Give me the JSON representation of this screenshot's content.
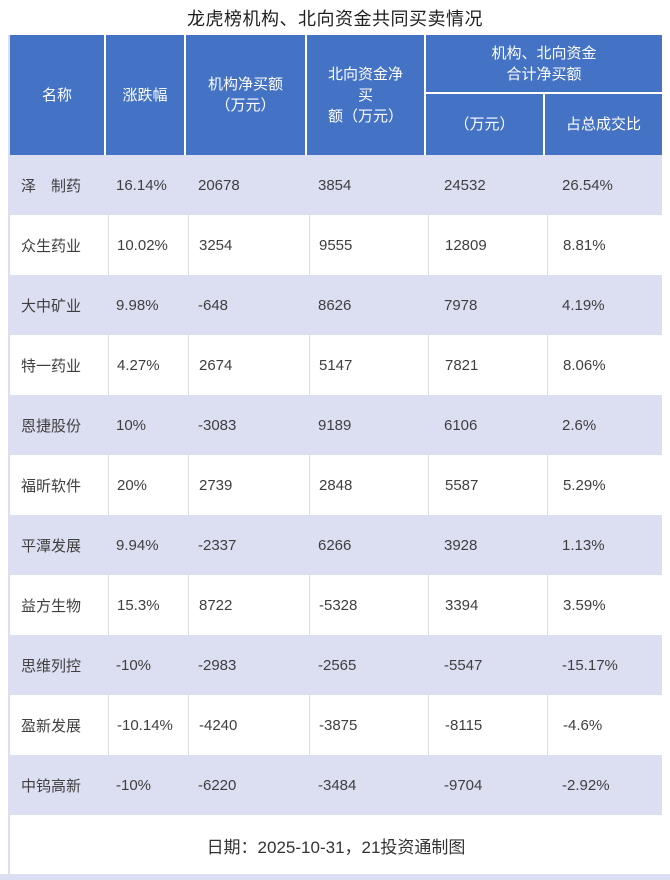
{
  "title": "龙虎榜机构、北向资金共同买卖情况",
  "colors": {
    "header_bg": "#4472C4",
    "header_text": "#FFFFFF",
    "alt_row_bg": "#DCDFF2",
    "body_text": "#3F3F3F"
  },
  "table": {
    "header": {
      "name": "名称",
      "change": "涨跌幅",
      "inst_line1": "机构净买额",
      "inst_line2": "（万元）",
      "north_line1": "北向资金净买",
      "north_line2": "额（万元）",
      "group_line1": "机构、北向资金",
      "group_line2": "合计净买额",
      "sub_amount": "（万元）",
      "sub_ratio": "占总成交比"
    },
    "rows": [
      {
        "name": "泽　制药",
        "change": "16.14%",
        "inst": "20678",
        "north": "3854",
        "total": "24532",
        "ratio": "26.54%"
      },
      {
        "name": "众生药业",
        "change": "10.02%",
        "inst": "3254",
        "north": "9555",
        "total": "12809",
        "ratio": "8.81%"
      },
      {
        "name": "大中矿业",
        "change": "9.98%",
        "inst": "-648",
        "north": "8626",
        "total": "7978",
        "ratio": "4.19%"
      },
      {
        "name": "特一药业",
        "change": "4.27%",
        "inst": "2674",
        "north": "5147",
        "total": "7821",
        "ratio": "8.06%"
      },
      {
        "name": "恩捷股份",
        "change": "10%",
        "inst": "-3083",
        "north": "9189",
        "total": "6106",
        "ratio": "2.6%"
      },
      {
        "name": "福昕软件",
        "change": "20%",
        "inst": "2739",
        "north": "2848",
        "total": "5587",
        "ratio": "5.29%"
      },
      {
        "name": "平潭发展",
        "change": "9.94%",
        "inst": "-2337",
        "north": "6266",
        "total": "3928",
        "ratio": "1.13%"
      },
      {
        "name": "益方生物",
        "change": "15.3%",
        "inst": "8722",
        "north": "-5328",
        "total": "3394",
        "ratio": "3.59%"
      },
      {
        "name": "思维列控",
        "change": "-10%",
        "inst": "-2983",
        "north": "-2565",
        "total": "-5547",
        "ratio": "-15.17%"
      },
      {
        "name": "盈新发展",
        "change": "-10.14%",
        "inst": "-4240",
        "north": "-3875",
        "total": "-8115",
        "ratio": "-4.6%"
      },
      {
        "name": "中钨高新",
        "change": "-10%",
        "inst": "-6220",
        "north": "-3484",
        "total": "-9704",
        "ratio": "-2.92%"
      }
    ],
    "footer": "日期：2025-10-31，21投资通制图"
  },
  "chart_data": {
    "type": "table",
    "title": "龙虎榜机构、北向资金共同买卖情况",
    "columns": [
      "名称",
      "涨跌幅",
      "机构净买额（万元）",
      "北向资金净买额（万元）",
      "机构、北向资金合计净买额（万元）",
      "机构、北向资金合计净买额占总成交比"
    ],
    "categories": [
      "泽　制药",
      "众生药业",
      "大中矿业",
      "特一药业",
      "恩捷股份",
      "福昕软件",
      "平潭发展",
      "益方生物",
      "思维列控",
      "盈新发展",
      "中钨高新"
    ],
    "series": [
      {
        "name": "涨跌幅(%)",
        "values": [
          16.14,
          10.02,
          9.98,
          4.27,
          10,
          20,
          9.94,
          15.3,
          -10,
          -10.14,
          -10
        ]
      },
      {
        "name": "机构净买额(万元)",
        "values": [
          20678,
          3254,
          -648,
          2674,
          -3083,
          2739,
          -2337,
          8722,
          -2983,
          -4240,
          -6220
        ]
      },
      {
        "name": "北向资金净买额(万元)",
        "values": [
          3854,
          9555,
          8626,
          5147,
          9189,
          2848,
          6266,
          -5328,
          -2565,
          -3875,
          -3484
        ]
      },
      {
        "name": "合计净买额(万元)",
        "values": [
          24532,
          12809,
          7978,
          7821,
          6106,
          5587,
          3928,
          3394,
          -5547,
          -8115,
          -9704
        ]
      },
      {
        "name": "占总成交比(%)",
        "values": [
          26.54,
          8.81,
          4.19,
          8.06,
          2.6,
          5.29,
          1.13,
          3.59,
          -15.17,
          -4.6,
          -2.92
        ]
      }
    ],
    "annotation": "日期：2025-10-31，21投资通制图"
  }
}
